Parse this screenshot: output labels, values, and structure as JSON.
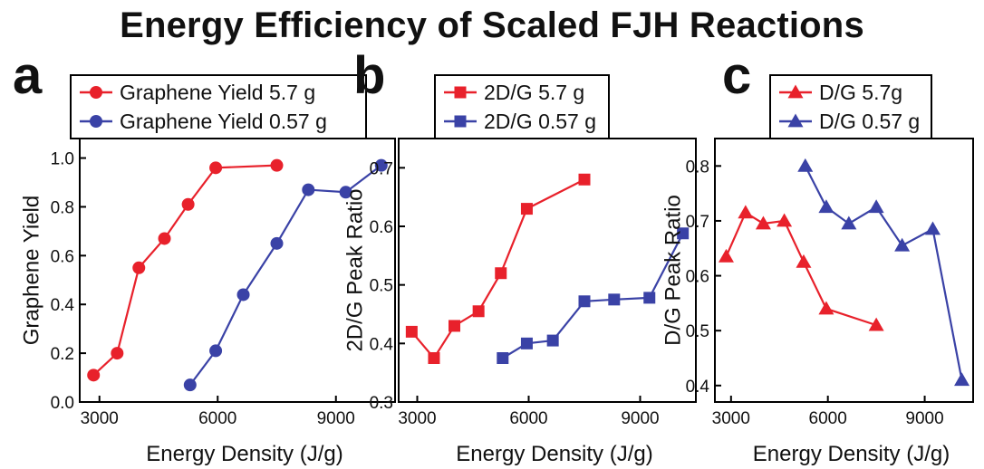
{
  "figure_title": "Energy Efficiency of Scaled FJH Reactions",
  "colors": {
    "red": "#e8212b",
    "blue": "#3a42a6",
    "axis": "#000000"
  },
  "chart_data": [
    {
      "panel_label": "a",
      "type": "line",
      "xlabel": "Energy Density (J/g)",
      "ylabel": "Graphene Yield",
      "xlim": [
        2500,
        10500
      ],
      "ylim": [
        0.0,
        1.08
      ],
      "xticks": [
        3000,
        6000,
        9000
      ],
      "xtick_labels": [
        "3000",
        "6000",
        "9000"
      ],
      "yticks": [
        0.0,
        0.2,
        0.4,
        0.6,
        0.8,
        1.0
      ],
      "ytick_labels": [
        "0.0",
        "0.2",
        "0.4",
        "0.6",
        "0.8",
        "1.0"
      ],
      "marker": "circle",
      "series": [
        {
          "name": "Graphene Yield 5.7 g",
          "color": "#e8212b",
          "x": [
            2850,
            3450,
            4000,
            4650,
            5250,
            5950,
            7500
          ],
          "y": [
            0.11,
            0.2,
            0.55,
            0.67,
            0.81,
            0.96,
            0.97
          ]
        },
        {
          "name": "Graphene Yield 0.57 g",
          "color": "#3a42a6",
          "x": [
            5300,
            5950,
            6650,
            7500,
            8300,
            9250,
            10150
          ],
          "y": [
            0.07,
            0.21,
            0.44,
            0.65,
            0.87,
            0.86,
            0.97
          ]
        }
      ]
    },
    {
      "panel_label": "b",
      "type": "line",
      "xlabel": "Energy Density (J/g)",
      "ylabel": "2D/G Peak Ratio",
      "xlim": [
        2500,
        10500
      ],
      "ylim": [
        0.3,
        0.75
      ],
      "xticks": [
        3000,
        6000,
        9000
      ],
      "xtick_labels": [
        "3000",
        "6000",
        "9000"
      ],
      "yticks": [
        0.3,
        0.4,
        0.5,
        0.6,
        0.7
      ],
      "ytick_labels": [
        "0.3",
        "0.4",
        "0.5",
        "0.6",
        "0.7"
      ],
      "marker": "square",
      "series": [
        {
          "name": "2D/G 5.7 g",
          "color": "#e8212b",
          "x": [
            2850,
            3450,
            4000,
            4650,
            5250,
            5950,
            7500
          ],
          "y": [
            0.42,
            0.375,
            0.43,
            0.455,
            0.52,
            0.63,
            0.68
          ]
        },
        {
          "name": "2D/G 0.57 g",
          "color": "#3a42a6",
          "x": [
            5300,
            5950,
            6650,
            7500,
            8300,
            9250,
            10150
          ],
          "y": [
            0.375,
            0.4,
            0.405,
            0.472,
            0.475,
            0.478,
            0.588
          ]
        }
      ]
    },
    {
      "panel_label": "c",
      "type": "line",
      "xlabel": "Energy Density (J/g)",
      "ylabel": "D/G Peak Ratio",
      "xlim": [
        2500,
        10500
      ],
      "ylim": [
        0.37,
        0.85
      ],
      "xticks": [
        3000,
        6000,
        9000
      ],
      "xtick_labels": [
        "3000",
        "6000",
        "9000"
      ],
      "yticks": [
        0.4,
        0.5,
        0.6,
        0.7,
        0.8
      ],
      "ytick_labels": [
        "0.4",
        "0.5",
        "0.6",
        "0.7",
        "0.8"
      ],
      "marker": "triangle",
      "series": [
        {
          "name": "D/G 5.7g",
          "color": "#e8212b",
          "x": [
            2850,
            3450,
            4000,
            4650,
            5250,
            5950,
            7500
          ],
          "y": [
            0.635,
            0.715,
            0.695,
            0.7,
            0.625,
            0.54,
            0.51
          ]
        },
        {
          "name": "D/G 0.57 g",
          "color": "#3a42a6",
          "x": [
            5300,
            5950,
            6650,
            7500,
            8300,
            9250,
            10150
          ],
          "y": [
            0.8,
            0.725,
            0.695,
            0.725,
            0.655,
            0.685,
            0.41
          ]
        }
      ]
    }
  ]
}
